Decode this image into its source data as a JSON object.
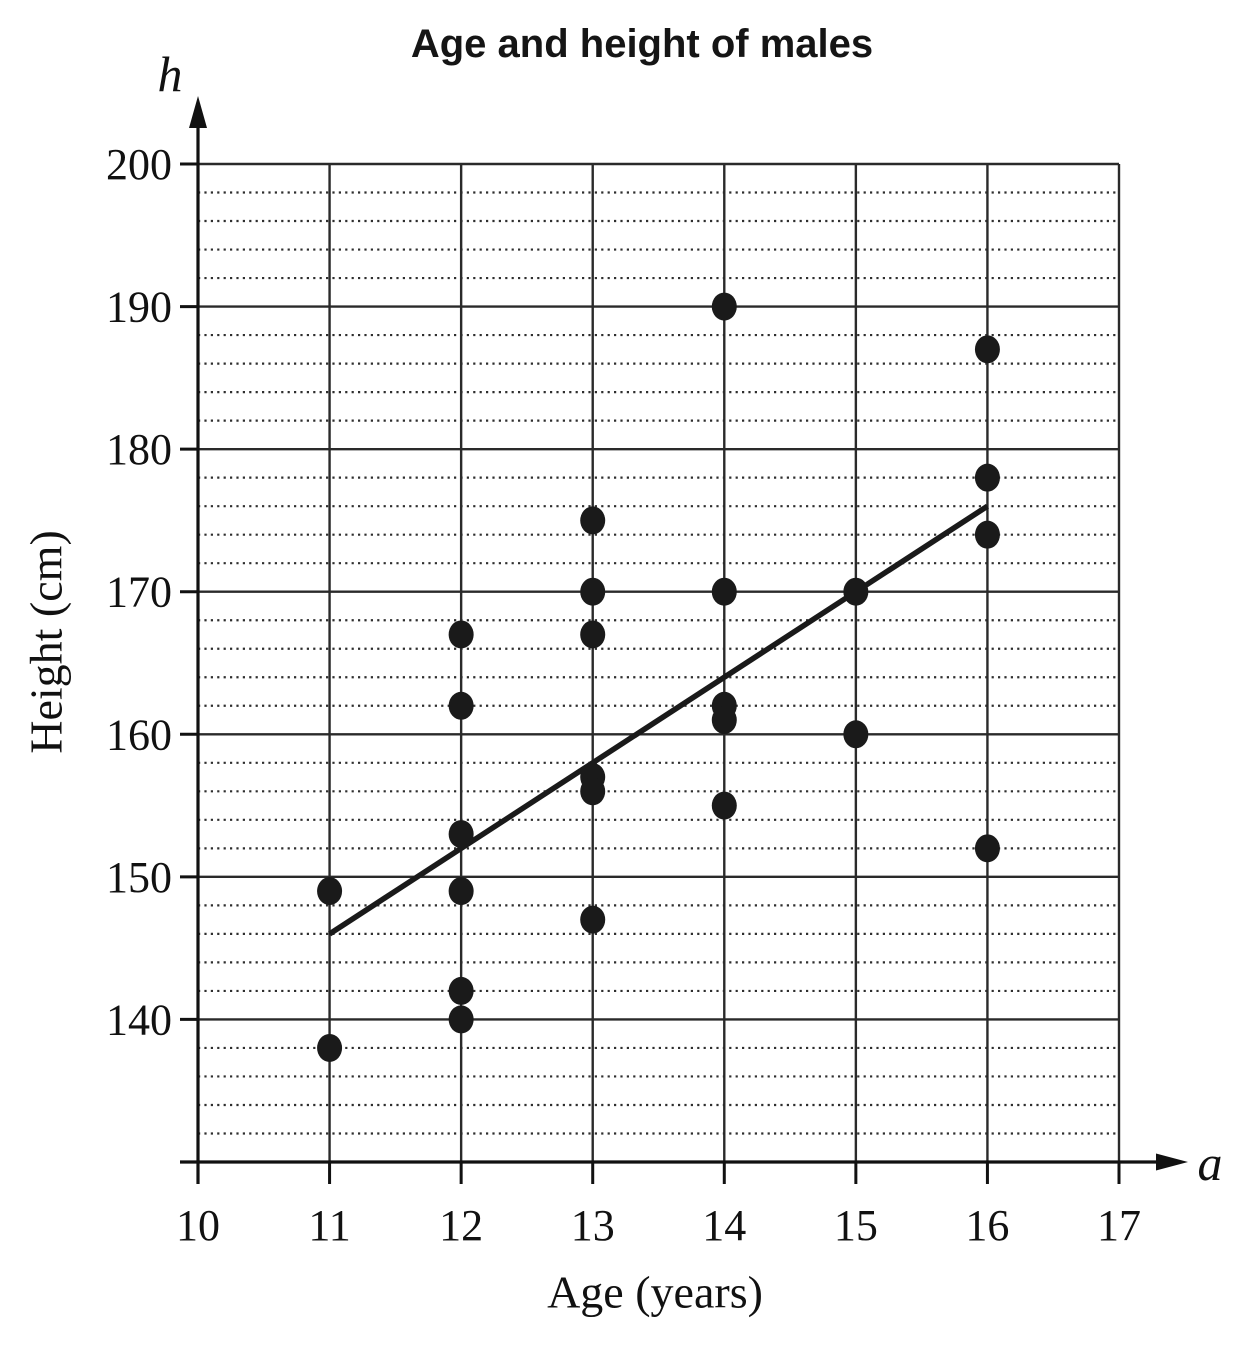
{
  "title": "Age and height of males",
  "chart_data": {
    "type": "scatter",
    "title": "Age and height of males",
    "xlabel": "Age (years)",
    "ylabel": "Height (cm)",
    "x_axis_symbol": "a",
    "y_axis_symbol": "h",
    "xlim": [
      10,
      17
    ],
    "ylim": [
      130,
      200
    ],
    "x_ticks": [
      10,
      11,
      12,
      13,
      14,
      15,
      16,
      17
    ],
    "y_ticks": [
      140,
      150,
      160,
      170,
      180,
      190,
      200
    ],
    "minor_grid_step_y": 2,
    "grid_style": "major solid lines both axes; minor horizontal dotted lines every 2 cm",
    "legend": "none",
    "points": [
      [
        11,
        149
      ],
      [
        11,
        138
      ],
      [
        12,
        167
      ],
      [
        12,
        162
      ],
      [
        12,
        153
      ],
      [
        12,
        149
      ],
      [
        12,
        142
      ],
      [
        12,
        140
      ],
      [
        13,
        175
      ],
      [
        13,
        170
      ],
      [
        13,
        167
      ],
      [
        13,
        157
      ],
      [
        13,
        156
      ],
      [
        13,
        147
      ],
      [
        14,
        190
      ],
      [
        14,
        170
      ],
      [
        14,
        162
      ],
      [
        14,
        161
      ],
      [
        14,
        155
      ],
      [
        15,
        170
      ],
      [
        15,
        160
      ],
      [
        16,
        187
      ],
      [
        16,
        178
      ],
      [
        16,
        174
      ],
      [
        16,
        152
      ]
    ],
    "trend_line": {
      "x1": 11,
      "y1": 146,
      "x2": 16,
      "y2": 176
    },
    "colors": {
      "points": "#1a1a1a",
      "trend_line": "#1a1a1a",
      "grid_major": "#2a2a2a",
      "grid_minor": "#2e2e2e",
      "axis": "#111111",
      "background": "#ffffff"
    }
  }
}
